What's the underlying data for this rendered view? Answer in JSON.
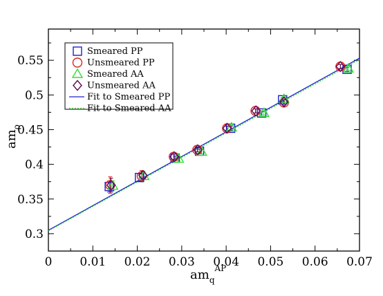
{
  "chart_data": {
    "type": "scatter",
    "xlabel": {
      "main": "am",
      "sub": "q",
      "sup": "AP"
    },
    "ylabel": {
      "main": "am",
      "sub": "ρ"
    },
    "xlim": [
      0,
      0.07
    ],
    "ylim": [
      0.275,
      0.595
    ],
    "x_ticks": [
      "0",
      "0.01",
      "0.02",
      "0.03",
      "0.04",
      "0.05",
      "0.06",
      "0.07"
    ],
    "y_ticks": [
      "0.3",
      "0.35",
      "0.4",
      "0.45",
      "0.5",
      "0.55"
    ],
    "grid": false,
    "legend_position": "top-left",
    "series": [
      {
        "name": "Smeared PP",
        "marker": "square",
        "color": "#1f1fcc",
        "points": [
          {
            "x": 0.0137,
            "y": 0.368,
            "err": 0.008
          },
          {
            "x": 0.0205,
            "y": 0.381,
            "err": 0.005
          },
          {
            "x": 0.0285,
            "y": 0.409,
            "err": 0.003
          },
          {
            "x": 0.034,
            "y": 0.419,
            "err": 0.003
          },
          {
            "x": 0.041,
            "y": 0.452,
            "err": 0.003
          },
          {
            "x": 0.048,
            "y": 0.474,
            "err": 0.003
          },
          {
            "x": 0.0527,
            "y": 0.493,
            "err": 0.003
          },
          {
            "x": 0.0672,
            "y": 0.537,
            "err": 0.003
          }
        ]
      },
      {
        "name": "Unsmeared PP",
        "marker": "circle",
        "color": "#e0201c",
        "points": [
          {
            "x": 0.0139,
            "y": 0.37,
            "err": 0.012
          },
          {
            "x": 0.021,
            "y": 0.383,
            "err": 0.008
          },
          {
            "x": 0.0282,
            "y": 0.411,
            "err": 0.004
          },
          {
            "x": 0.0335,
            "y": 0.421,
            "err": 0.003
          },
          {
            "x": 0.0402,
            "y": 0.452,
            "err": 0.003
          },
          {
            "x": 0.0466,
            "y": 0.477,
            "err": 0.003
          },
          {
            "x": 0.053,
            "y": 0.489,
            "err": 0.004
          },
          {
            "x": 0.0657,
            "y": 0.541,
            "err": 0.003
          }
        ]
      },
      {
        "name": "Smeared AA",
        "marker": "triangle",
        "color": "#33dd33",
        "points": [
          {
            "x": 0.0145,
            "y": 0.369,
            "err": 0.007
          },
          {
            "x": 0.0215,
            "y": 0.383,
            "err": 0.005
          },
          {
            "x": 0.0293,
            "y": 0.408,
            "err": 0.003
          },
          {
            "x": 0.0345,
            "y": 0.418,
            "err": 0.003
          },
          {
            "x": 0.0412,
            "y": 0.453,
            "err": 0.003
          },
          {
            "x": 0.0485,
            "y": 0.474,
            "err": 0.003
          },
          {
            "x": 0.053,
            "y": 0.494,
            "err": 0.003
          },
          {
            "x": 0.0675,
            "y": 0.538,
            "err": 0.003
          }
        ]
      },
      {
        "name": "Unsmeared AA",
        "marker": "diamond",
        "color": "#5a0a50",
        "points": [
          {
            "x": 0.0141,
            "y": 0.37,
            "err": 0.01
          },
          {
            "x": 0.0213,
            "y": 0.384,
            "err": 0.006
          },
          {
            "x": 0.0283,
            "y": 0.411,
            "err": 0.004
          },
          {
            "x": 0.0336,
            "y": 0.421,
            "err": 0.003
          },
          {
            "x": 0.0402,
            "y": 0.452,
            "err": 0.003
          },
          {
            "x": 0.0467,
            "y": 0.477,
            "err": 0.003
          },
          {
            "x": 0.053,
            "y": 0.49,
            "err": 0.003
          },
          {
            "x": 0.0657,
            "y": 0.541,
            "err": 0.003
          }
        ]
      }
    ],
    "fits": [
      {
        "name": "Fit to Smeared PP",
        "style": "solid",
        "color": "#1f1fcc",
        "x": [
          0,
          0.07
        ],
        "y": [
          0.305,
          0.553
        ]
      },
      {
        "name": "Fit to Smeared AA",
        "style": "dotted",
        "color": "#33dd33",
        "x": [
          0,
          0.07
        ],
        "y": [
          0.304,
          0.551
        ]
      }
    ]
  }
}
